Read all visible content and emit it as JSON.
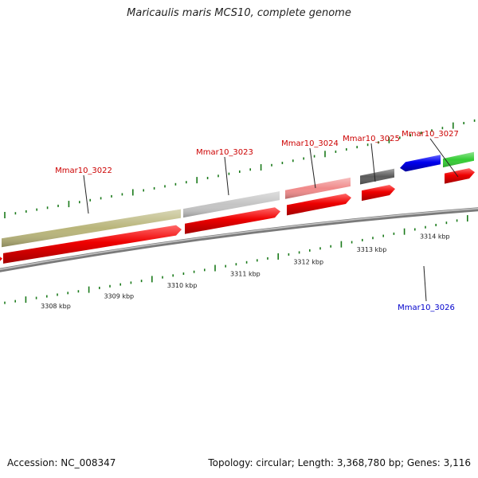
{
  "title": "Maricaulis maris MCS10, complete genome",
  "footer": {
    "accession": "Accession: NC_008347",
    "summary": "Topology: circular; Length: 3,368,780 bp; Genes: 3,116"
  },
  "colors": {
    "cds_forward": "#ee0000",
    "cds_reverse": "#0000ee",
    "backbone": "#888888",
    "tick": "#1a7a1a",
    "label_forward": "#cc0000",
    "label_reverse": "#0000cc"
  },
  "ruler": {
    "unit": "kbp",
    "labels": [
      {
        "kbp": 3308,
        "text": "3308 kbp"
      },
      {
        "kbp": 3309,
        "text": "3309 kbp"
      },
      {
        "kbp": 3310,
        "text": "3310 kbp"
      },
      {
        "kbp": 3311,
        "text": "3311 kbp"
      },
      {
        "kbp": 3312,
        "text": "3312 kbp"
      },
      {
        "kbp": 3313,
        "text": "3313 kbp"
      },
      {
        "kbp": 3314,
        "text": "3314 kbp"
      }
    ]
  },
  "genes": [
    {
      "name": "Mmar10_3022",
      "strand": "+",
      "annotation_color": "#b9b57a"
    },
    {
      "name": "Mmar10_3023",
      "strand": "+",
      "annotation_color": "#c4c4c4"
    },
    {
      "name": "Mmar10_3024",
      "strand": "+",
      "annotation_color": "#f08a8a"
    },
    {
      "name": "Mmar10_3025",
      "strand": "+",
      "annotation_color": "#5a5a5a"
    },
    {
      "name": "Mmar10_3026",
      "strand": "-",
      "annotation_color": ""
    },
    {
      "name": "Mmar10_3027",
      "strand": "+",
      "annotation_color": "#33cc33"
    }
  ]
}
